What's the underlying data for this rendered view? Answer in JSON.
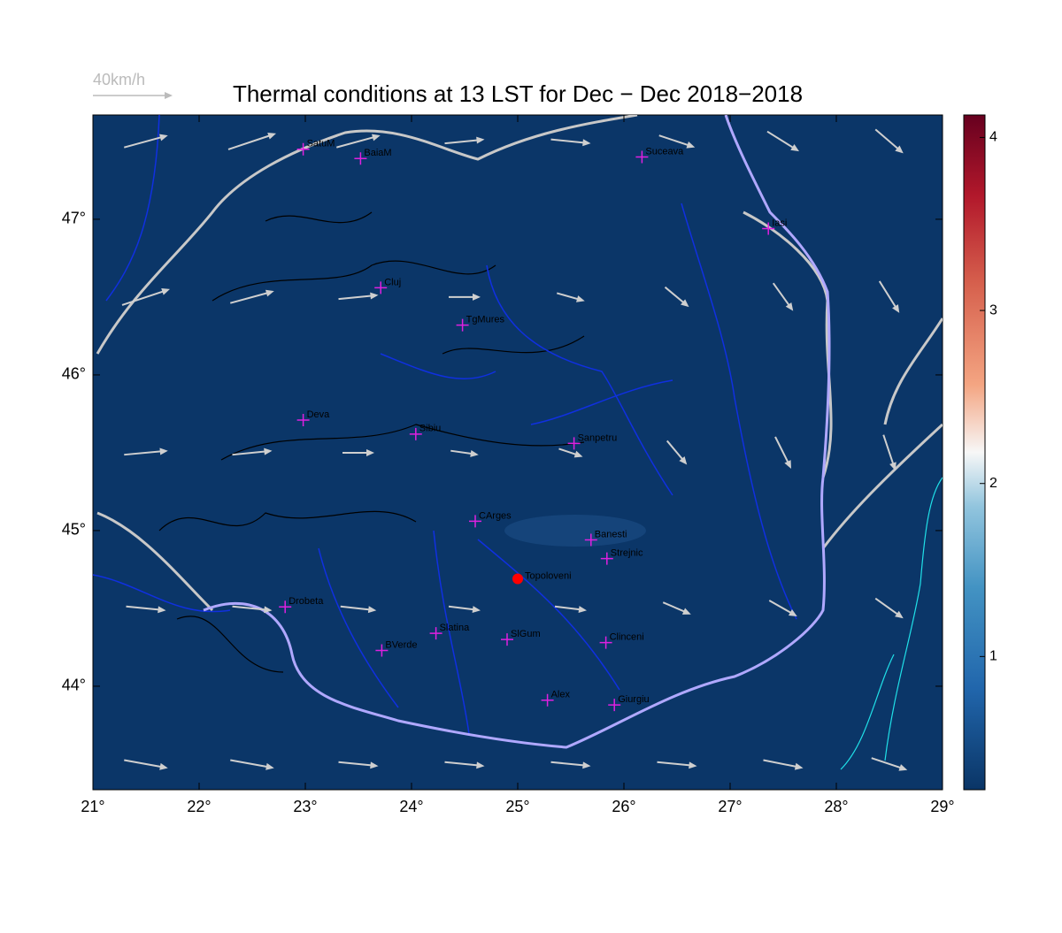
{
  "chart_data": {
    "type": "map",
    "title": "Thermal conditions at 13 LST for Dec − Dec  2018−2018",
    "wind_scale": {
      "value": 40,
      "label": "40km/h"
    },
    "xlim": [
      21,
      29
    ],
    "ylim": [
      43.335,
      47.67
    ],
    "xticks": [
      {
        "value": 21,
        "label": "21°"
      },
      {
        "value": 22,
        "label": "22°"
      },
      {
        "value": 23,
        "label": "23°"
      },
      {
        "value": 24,
        "label": "24°"
      },
      {
        "value": 25,
        "label": "25°"
      },
      {
        "value": 26,
        "label": "26°"
      },
      {
        "value": 27,
        "label": "27°"
      },
      {
        "value": 28,
        "label": "28°"
      },
      {
        "value": 29,
        "label": "29°"
      }
    ],
    "yticks": [
      {
        "value": 44,
        "label": "44°"
      },
      {
        "value": 45,
        "label": "45°"
      },
      {
        "value": 46,
        "label": "46°"
      },
      {
        "value": 47,
        "label": "47°"
      }
    ],
    "clim": [
      0.23,
      4.13
    ],
    "cticks": [
      1,
      2,
      3,
      4
    ],
    "cities": [
      {
        "name": "SatuM",
        "lon": 22.98,
        "lat": 47.45
      },
      {
        "name": "BaiaM",
        "lon": 23.52,
        "lat": 47.39
      },
      {
        "name": "Suceava",
        "lon": 26.17,
        "lat": 47.4
      },
      {
        "name": "Iasi",
        "lon": 27.36,
        "lat": 46.94
      },
      {
        "name": "Cluj",
        "lon": 23.71,
        "lat": 46.56
      },
      {
        "name": "TgMures",
        "lon": 24.48,
        "lat": 46.32
      },
      {
        "name": "Deva",
        "lon": 22.98,
        "lat": 45.71
      },
      {
        "name": "Sibiu",
        "lon": 24.04,
        "lat": 45.62
      },
      {
        "name": "Sanpetru",
        "lon": 25.53,
        "lat": 45.56
      },
      {
        "name": "CArges",
        "lon": 24.6,
        "lat": 45.06
      },
      {
        "name": "Banesti",
        "lon": 25.69,
        "lat": 44.94
      },
      {
        "name": "Strejnic",
        "lon": 25.84,
        "lat": 44.82
      },
      {
        "name": "Drobeta",
        "lon": 22.81,
        "lat": 44.51
      },
      {
        "name": "Slatina",
        "lon": 24.23,
        "lat": 44.34
      },
      {
        "name": "SlGum",
        "lon": 24.9,
        "lat": 44.3
      },
      {
        "name": "BVerde",
        "lon": 23.72,
        "lat": 44.23
      },
      {
        "name": "Clinceni",
        "lon": 25.83,
        "lat": 44.28
      },
      {
        "name": "Alex",
        "lon": 25.28,
        "lat": 43.91
      },
      {
        "name": "Giurgiu",
        "lon": 25.91,
        "lat": 43.88
      }
    ],
    "site": {
      "name": "Topoloveni",
      "lon": 25.0,
      "lat": 44.69
    },
    "wind": {
      "lon": [
        21.5,
        22.5,
        23.5,
        24.5,
        25.5,
        26.5,
        27.5,
        28.5
      ],
      "lat": [
        47.5,
        46.5,
        45.5,
        44.5,
        43.5
      ],
      "u": [
        [
          22,
          24,
          22,
          20,
          20,
          18,
          16,
          14
        ],
        [
          24,
          22,
          20,
          16,
          14,
          12,
          10,
          10
        ],
        [
          22,
          20,
          16,
          14,
          12,
          10,
          8,
          6
        ],
        [
          20,
          20,
          18,
          16,
          16,
          14,
          14,
          14
        ],
        [
          22,
          22,
          20,
          20,
          20,
          20,
          20,
          18
        ]
      ],
      "v": [
        [
          6,
          8,
          6,
          2,
          -2,
          -6,
          -10,
          -12
        ],
        [
          8,
          6,
          2,
          0,
          -4,
          -10,
          -14,
          -16
        ],
        [
          2,
          2,
          0,
          -2,
          -4,
          -12,
          -16,
          -18
        ],
        [
          -2,
          -2,
          -2,
          -2,
          -2,
          -6,
          -8,
          -10
        ],
        [
          -4,
          -4,
          -2,
          -2,
          -2,
          -2,
          -4,
          -6
        ]
      ]
    }
  }
}
